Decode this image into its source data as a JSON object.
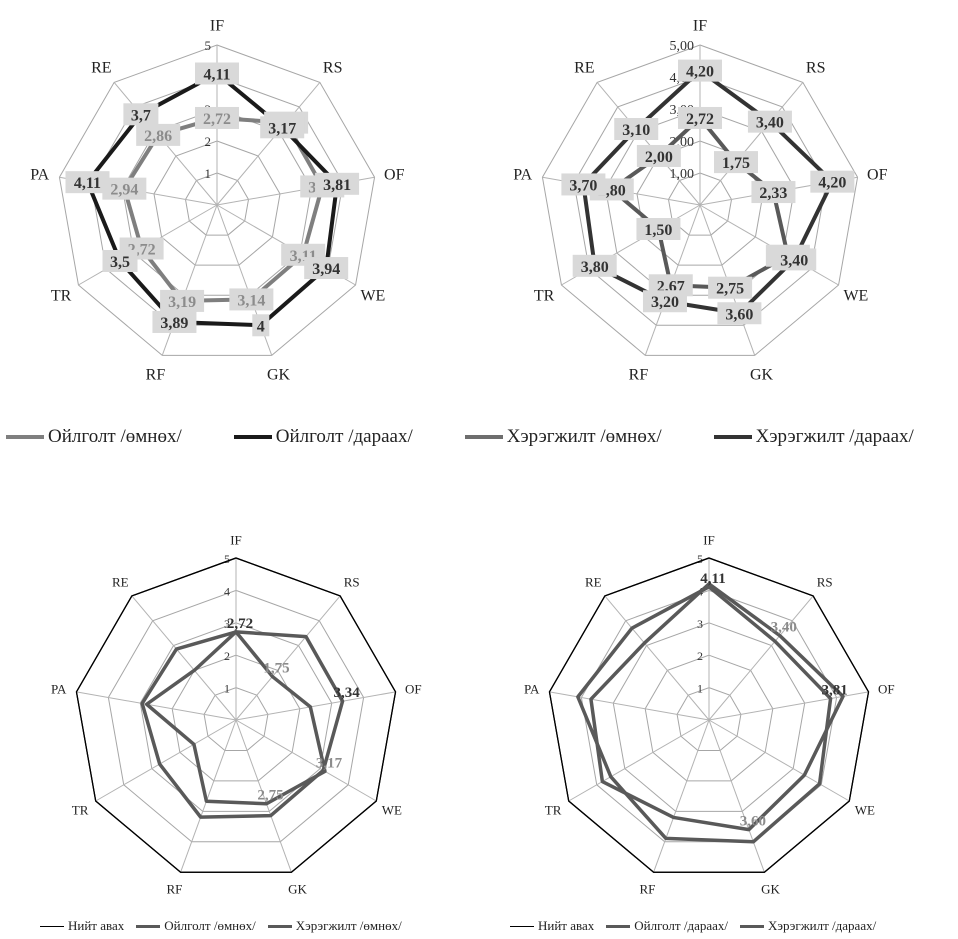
{
  "colors": {
    "grid": "#a6a6a6",
    "dark": "#262626",
    "mid": "#595959",
    "light": "#8c8c8c",
    "label_box": "#d9d9d9",
    "outer_black": "#000000"
  },
  "chart_data": [
    {
      "type": "radar",
      "categories": [
        "IF",
        "RS",
        "OF",
        "WE",
        "GK",
        "RF",
        "TR",
        "PA",
        "RE"
      ],
      "rlim": [
        0,
        5
      ],
      "tick_labels": [
        "1",
        "2",
        "3",
        "4",
        "5"
      ],
      "series": [
        {
          "name": "Ойлголт /өмнөх/",
          "values": [
            2.72,
            3.36,
            3.34,
            3.11,
            3.14,
            3.19,
            2.72,
            2.94,
            2.86
          ],
          "labels": [
            "2,72",
            "3,36",
            "3,34",
            "3,11",
            "3,14",
            "3,19",
            "2,72",
            "2,94",
            "2,86"
          ],
          "color": "#7f7f7f"
        },
        {
          "name": "Ойлголт /дараах/",
          "values": [
            4.11,
            3.17,
            3.81,
            3.94,
            4.0,
            3.89,
            3.5,
            4.11,
            3.7
          ],
          "labels": [
            "4,11",
            "3,17",
            "3,81",
            "3,94",
            "4",
            "3,89",
            "3,5",
            "4,11",
            "3,7"
          ],
          "color": "#1a1a1a"
        }
      ]
    },
    {
      "type": "radar",
      "categories": [
        "IF",
        "RS",
        "OF",
        "WE",
        "GK",
        "RF",
        "TR",
        "PA",
        "RE"
      ],
      "rlim": [
        0,
        5
      ],
      "tick_labels": [
        "1,00",
        "2,00",
        "3,00",
        "4,00",
        "5,00"
      ],
      "series": [
        {
          "name": "Хэрэгжилт /өмнөх/",
          "values": [
            2.72,
            1.75,
            2.33,
            3.17,
            2.75,
            2.67,
            1.5,
            2.8,
            2.0
          ],
          "labels": [
            "2,72",
            "1,75",
            "2,33",
            "3,17",
            "2,75",
            "2,67",
            "1,50",
            "2,80",
            "2,00"
          ],
          "color": "#595959"
        },
        {
          "name": "Хэрэгжилт /дараах/",
          "values": [
            4.2,
            3.4,
            4.2,
            3.4,
            3.6,
            3.2,
            3.8,
            3.7,
            3.1
          ],
          "labels": [
            "4,20",
            "3,40",
            "4,20",
            "3,40",
            "3,60",
            "3,20",
            "3,80",
            "3,70",
            "3,10"
          ],
          "color": "#333333"
        }
      ]
    },
    {
      "type": "radar",
      "categories": [
        "IF",
        "RS",
        "OF",
        "WE",
        "GK",
        "RF",
        "TR",
        "PA",
        "RE"
      ],
      "rlim": [
        0,
        5
      ],
      "tick_labels": [
        "1",
        "2",
        "3",
        "4",
        "5"
      ],
      "series": [
        {
          "name": "Нийт авах",
          "values": [
            5,
            5,
            5,
            5,
            5,
            5,
            5,
            5,
            5
          ],
          "color": "#000000"
        },
        {
          "name": "Ойлголт /өмнөх/",
          "values": [
            2.72,
            3.36,
            3.34,
            3.11,
            3.14,
            3.19,
            2.72,
            2.94,
            2.86
          ],
          "color": "#595959"
        },
        {
          "name": "Хэрэгжилт /өмнөх/",
          "values": [
            2.72,
            1.75,
            2.33,
            3.17,
            2.75,
            2.67,
            1.5,
            2.8,
            2.0
          ],
          "color": "#595959"
        }
      ],
      "data_labels": [
        {
          "axis": "IF",
          "value": 2.72,
          "text": "2,72",
          "color": "#333333"
        },
        {
          "axis": "RS",
          "value": 1.75,
          "text": "1,75",
          "color": "#8c8c8c"
        },
        {
          "axis": "OF",
          "value": 3.34,
          "text": "3,34",
          "color": "#333333"
        },
        {
          "axis": "WE",
          "value": 3.17,
          "text": "3,17",
          "color": "#8c8c8c"
        },
        {
          "axis": "GK",
          "value": 2.75,
          "text": "2,75",
          "color": "#8c8c8c"
        }
      ]
    },
    {
      "type": "radar",
      "categories": [
        "IF",
        "RS",
        "OF",
        "WE",
        "GK",
        "RF",
        "TR",
        "PA",
        "RE"
      ],
      "rlim": [
        0,
        5
      ],
      "tick_labels": [
        "1",
        "2",
        "3",
        "4",
        "5"
      ],
      "series": [
        {
          "name": "Нийт авах",
          "values": [
            5,
            5,
            5,
            5,
            5,
            5,
            5,
            5,
            5
          ],
          "color": "#000000"
        },
        {
          "name": "Ойлголт /дараах/",
          "values": [
            4.11,
            3.17,
            3.81,
            3.94,
            4.0,
            3.89,
            3.5,
            4.11,
            3.7
          ],
          "color": "#595959"
        },
        {
          "name": "Хэрэгжилт /дараах/",
          "values": [
            4.2,
            3.4,
            4.2,
            3.4,
            3.6,
            3.2,
            3.8,
            3.7,
            3.1
          ],
          "color": "#595959"
        }
      ],
      "data_labels": [
        {
          "axis": "IF",
          "value": 4.11,
          "text": "4,11",
          "color": "#333333"
        },
        {
          "axis": "RS",
          "value": 3.4,
          "text": "3,40",
          "color": "#8c8c8c"
        },
        {
          "axis": "OF",
          "value": 3.81,
          "text": "3,81",
          "color": "#333333"
        },
        {
          "axis": "GK",
          "value": 3.6,
          "text": "3,60",
          "color": "#8c8c8c"
        }
      ]
    }
  ],
  "legend_top": [
    {
      "label": "Ойлголт /өмнөх/",
      "color": "#7f7f7f"
    },
    {
      "label": "Ойлголт /дараах/",
      "color": "#1a1a1a"
    },
    {
      "label": "Хэрэгжилт /өмнөх/",
      "color": "#6e6e6e"
    },
    {
      "label": "Хэрэгжилт /дараах/",
      "color": "#333333"
    }
  ],
  "legend_bottom_left": [
    {
      "label": "Нийт авах",
      "color": "#000000"
    },
    {
      "label": "Ойлголт /өмнөх/",
      "color": "#595959"
    },
    {
      "label": "Хэрэгжилт /өмнөх/",
      "color": "#595959"
    }
  ],
  "legend_bottom_right": [
    {
      "label": "Нийт авах",
      "color": "#000000"
    },
    {
      "label": "Ойлголт /дараах/",
      "color": "#595959"
    },
    {
      "label": "Хэрэгжилт /дараах/",
      "color": "#595959"
    }
  ]
}
